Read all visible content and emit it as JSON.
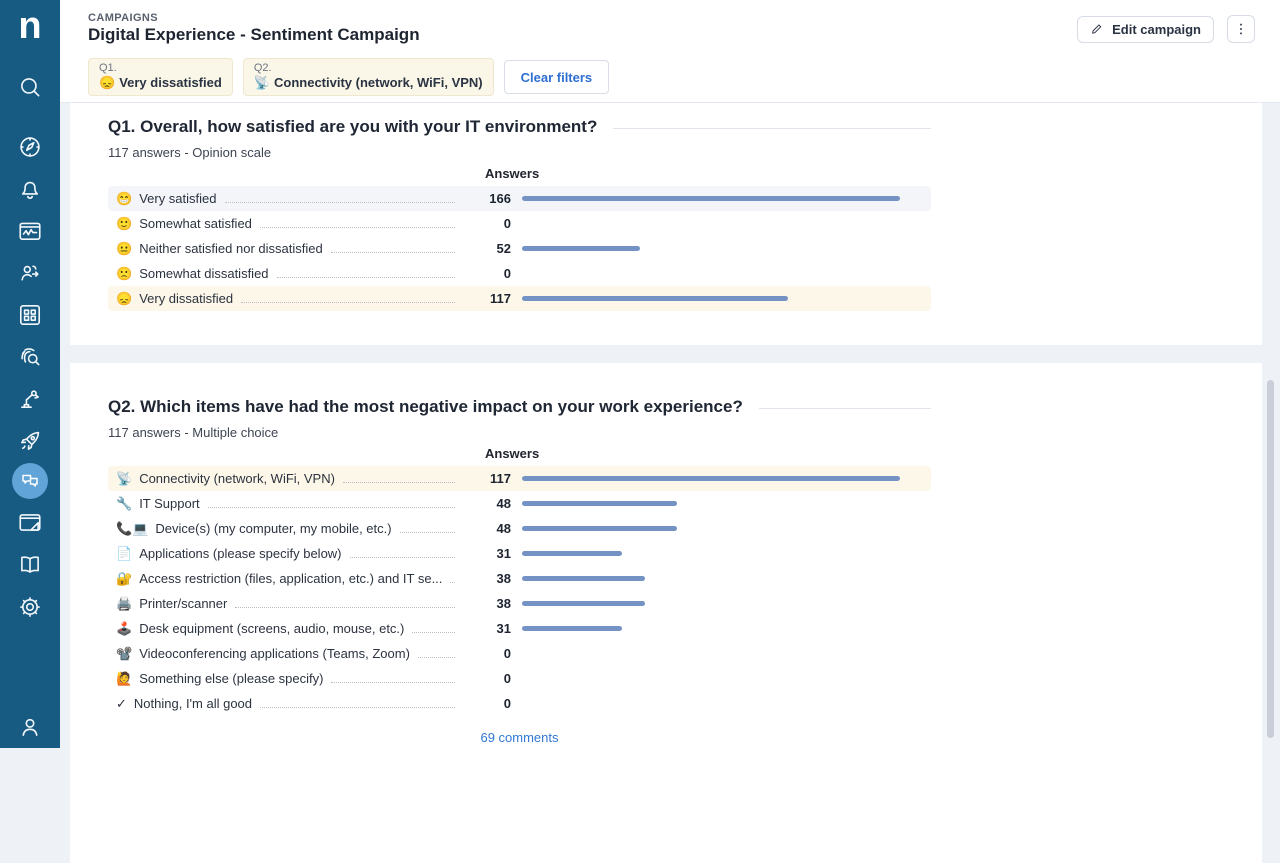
{
  "app": {
    "logo_letter": "n"
  },
  "sidebar": {
    "items": [
      "search-icon",
      "compass-icon",
      "bell-icon",
      "metrics-icon",
      "workforce-icon",
      "grid-icon",
      "investigate-icon",
      "robot-arm-icon",
      "rocket-icon",
      "campaigns-chat-icon",
      "designer-icon",
      "library-icon",
      "settings-icon",
      "account-icon"
    ],
    "active_item": "campaigns-chat-icon"
  },
  "header": {
    "breadcrumb": "CAMPAIGNS",
    "title": "Digital Experience - Sentiment Campaign",
    "edit_button_label": "Edit campaign",
    "clear_filters_label": "Clear filters",
    "filters": [
      {
        "question": "Q1.",
        "emoji": "😞",
        "label": "Very dissatisfied"
      },
      {
        "question": "Q2.",
        "emoji": "📡",
        "label": "Connectivity (network, WiFi, VPN)"
      }
    ]
  },
  "questions": [
    {
      "title": "Q1. Overall, how satisfied are you with your IT environment?",
      "subtitle": "117 answers - Opinion scale",
      "column_header": "Answers",
      "max_value": 166,
      "rows": [
        {
          "emoji": "😁",
          "label": "Very satisfied",
          "value": 166,
          "highlight": "gray"
        },
        {
          "emoji": "🙂",
          "label": "Somewhat satisfied",
          "value": 0,
          "highlight": ""
        },
        {
          "emoji": "😐",
          "label": "Neither satisfied nor dissatisfied",
          "value": 52,
          "highlight": ""
        },
        {
          "emoji": "🙁",
          "label": "Somewhat dissatisfied",
          "value": 0,
          "highlight": ""
        },
        {
          "emoji": "😞",
          "label": "Very dissatisfied",
          "value": 117,
          "highlight": "yellow"
        }
      ]
    },
    {
      "title": "Q2. Which items have had the most negative impact on your work experience?",
      "subtitle": "117 answers - Multiple choice",
      "column_header": "Answers",
      "max_value": 117,
      "rows": [
        {
          "emoji": "📡",
          "label": "Connectivity (network, WiFi, VPN)",
          "value": 117,
          "highlight": "yellow"
        },
        {
          "emoji": "🔧",
          "label": "IT Support",
          "value": 48,
          "highlight": ""
        },
        {
          "emoji": "📞💻",
          "label": "Device(s) (my computer, my mobile, etc.)",
          "value": 48,
          "highlight": ""
        },
        {
          "emoji": "📄",
          "label": "Applications (please specify below)",
          "value": 31,
          "highlight": ""
        },
        {
          "emoji": "🔐",
          "label": "Access restriction (files, application, etc.) and IT se...",
          "value": 38,
          "highlight": ""
        },
        {
          "emoji": "🖨️",
          "label": "Printer/scanner",
          "value": 38,
          "highlight": ""
        },
        {
          "emoji": "🕹️",
          "label": "Desk equipment (screens, audio, mouse, etc.)",
          "value": 31,
          "highlight": ""
        },
        {
          "emoji": "📽️",
          "label": "Videoconferencing applications (Teams, Zoom)",
          "value": 0,
          "highlight": ""
        },
        {
          "emoji": "🙋",
          "label": "Something else (please specify)",
          "value": 0,
          "highlight": ""
        },
        {
          "emoji": "✓",
          "label": "Nothing, I'm all good",
          "value": 0,
          "highlight": ""
        }
      ],
      "footer_link": "69 comments"
    }
  ],
  "colors": {
    "sidebar_bg": "#175a82",
    "sidebar_active": "#61a5d8",
    "accent_blue": "#2e6fd2",
    "bar": "#7592c4",
    "row_highlight_gray": "#f3f5f9",
    "row_highlight_yellow": "#fcf7e8",
    "chip_bg": "#fbf7e8",
    "content_bg": "#eef1f6"
  }
}
